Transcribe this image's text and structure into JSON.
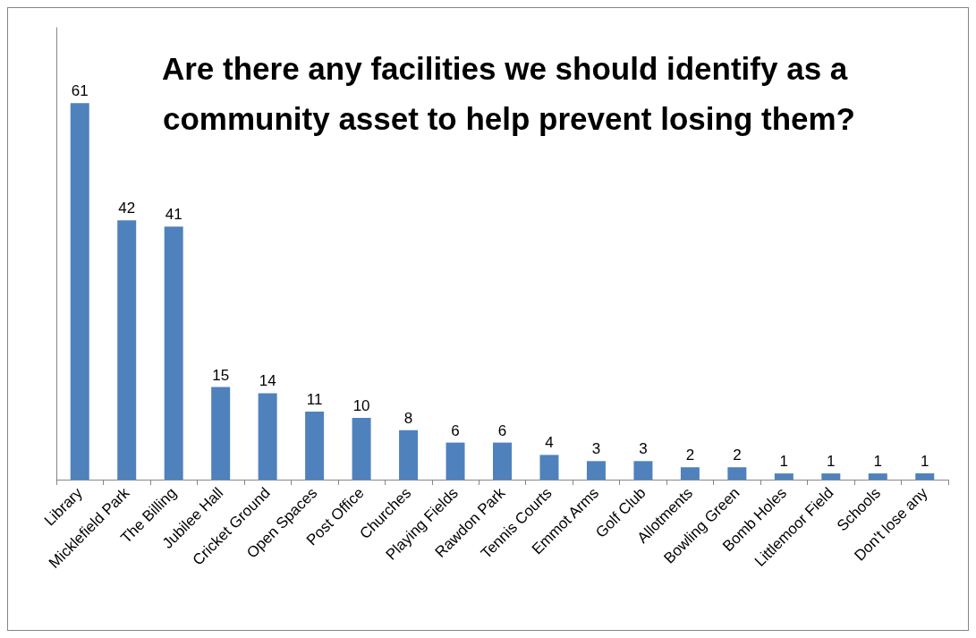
{
  "chart_data": {
    "type": "bar",
    "title": "Are there any facilities we should identify as a community asset to help prevent losing them?",
    "categories": [
      "Library",
      "Micklefield Park",
      "The Billing",
      "Jubilee Hall",
      "Cricket Ground",
      "Open Spaces",
      "Post Office",
      "Churches",
      "Playing Fields",
      "Rawdon Park",
      "Tennis Courts",
      "Emmot Arms",
      "Golf Club",
      "Allotments",
      "Bowling Green",
      "Bomb Holes",
      "Littlemoor Field",
      "Schools",
      "Don't lose any"
    ],
    "values": [
      61,
      42,
      41,
      15,
      14,
      11,
      10,
      8,
      6,
      6,
      4,
      3,
      3,
      2,
      2,
      1,
      1,
      1,
      1
    ],
    "color": "#4f81bd",
    "data_labels": true,
    "grid": false
  }
}
